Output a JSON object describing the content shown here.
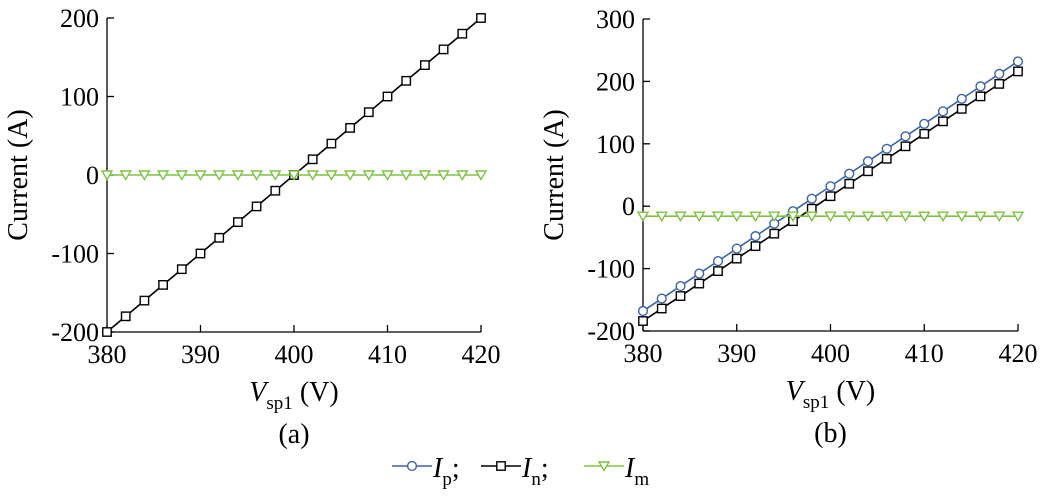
{
  "chart_data": [
    {
      "type": "line",
      "panel_label": "(a)",
      "ylabel": "Current (A)",
      "xlabel_main": "V",
      "xlabel_sub": "sp1",
      "xlabel_unit": " (V)",
      "xlim": [
        380,
        420
      ],
      "ylim": [
        -200,
        200
      ],
      "xticks": [
        380,
        390,
        400,
        410,
        420
      ],
      "yticks": [
        -200,
        -100,
        0,
        100,
        200
      ],
      "grid": false,
      "x": [
        380,
        382,
        384,
        386,
        388,
        390,
        392,
        394,
        396,
        398,
        400,
        402,
        404,
        406,
        408,
        410,
        412,
        414,
        416,
        418,
        420
      ],
      "series": [
        {
          "key": "In",
          "color": "#000000",
          "marker": "square",
          "values": [
            -200,
            -180,
            -160,
            -140,
            -120,
            -100,
            -80,
            -60,
            -40,
            -20,
            0,
            20,
            40,
            60,
            80,
            100,
            120,
            140,
            160,
            180,
            200
          ]
        },
        {
          "key": "Im",
          "color": "#7dc242",
          "marker": "triangle-down",
          "values": [
            0,
            0,
            0,
            0,
            0,
            0,
            0,
            0,
            0,
            0,
            0,
            0,
            0,
            0,
            0,
            0,
            0,
            0,
            0,
            0,
            0
          ]
        }
      ]
    },
    {
      "type": "line",
      "panel_label": "(b)",
      "ylabel": "Current (A)",
      "xlabel_main": "V",
      "xlabel_sub": "sp1",
      "xlabel_unit": " (V)",
      "xlim": [
        380,
        420
      ],
      "ylim": [
        -200,
        300
      ],
      "xticks": [
        380,
        390,
        400,
        410,
        420
      ],
      "yticks": [
        -200,
        -100,
        0,
        100,
        200,
        300
      ],
      "grid": false,
      "x": [
        380,
        382,
        384,
        386,
        388,
        390,
        392,
        394,
        396,
        398,
        400,
        402,
        404,
        406,
        408,
        410,
        412,
        414,
        416,
        418,
        420
      ],
      "series": [
        {
          "key": "Ip",
          "color": "#3a62a8",
          "marker": "circle",
          "values": [
            -168,
            -148,
            -128,
            -108,
            -88,
            -68,
            -48,
            -28,
            -8,
            12,
            32,
            52,
            72,
            92,
            112,
            132,
            152,
            172,
            192,
            212,
            232
          ]
        },
        {
          "key": "In",
          "color": "#000000",
          "marker": "square",
          "values": [
            -184,
            -164,
            -144,
            -124,
            -104,
            -84,
            -64,
            -44,
            -24,
            -4,
            16,
            36,
            56,
            76,
            96,
            116,
            136,
            156,
            176,
            196,
            216
          ]
        },
        {
          "key": "Im",
          "color": "#7dc242",
          "marker": "triangle-down",
          "values": [
            -16,
            -16,
            -16,
            -16,
            -16,
            -16,
            -16,
            -16,
            -16,
            -16,
            -16,
            -16,
            -16,
            -16,
            -16,
            -16,
            -16,
            -16,
            -16,
            -16,
            -16
          ]
        }
      ]
    }
  ],
  "legend": {
    "placement": "bottom-center",
    "items": [
      {
        "key": "Ip",
        "main": "I",
        "sub": "p",
        "sep": ";",
        "color": "#3a62a8",
        "marker": "circle"
      },
      {
        "key": "In",
        "main": "I",
        "sub": "n",
        "sep": ";",
        "color": "#000000",
        "marker": "square"
      },
      {
        "key": "Im",
        "main": "I",
        "sub": "m",
        "sep": "",
        "color": "#7dc242",
        "marker": "triangle-down"
      }
    ]
  }
}
